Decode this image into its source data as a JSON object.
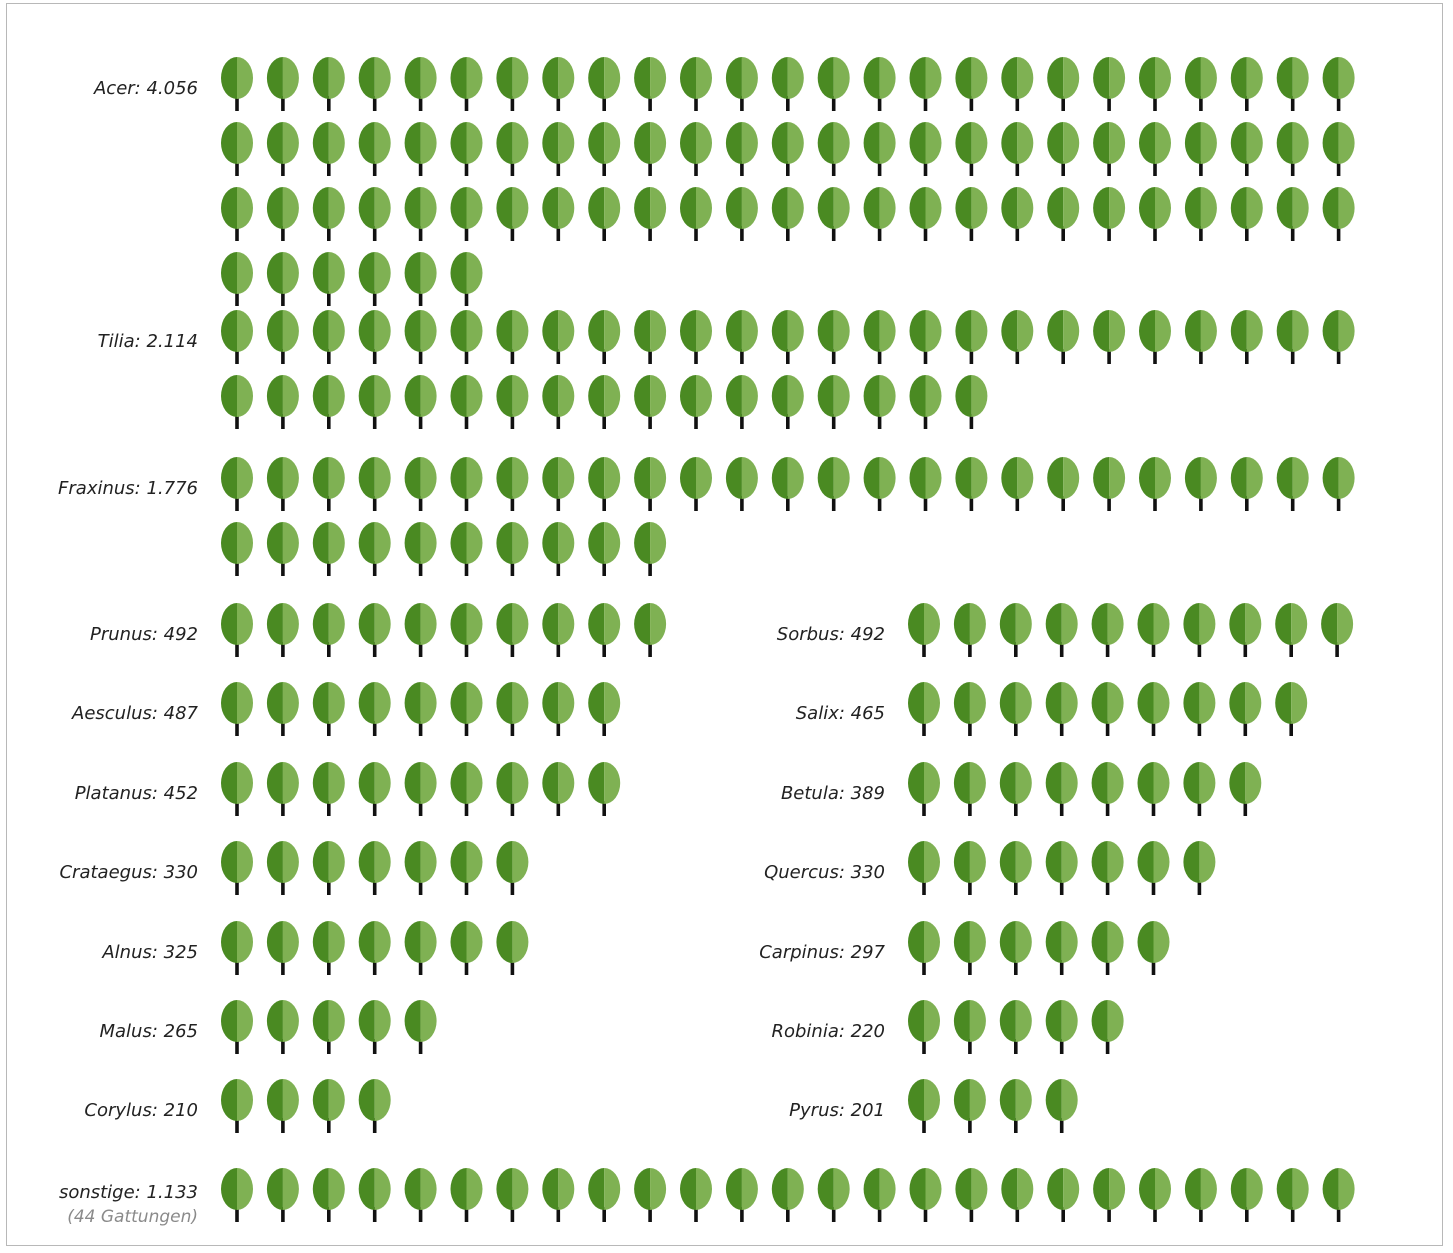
{
  "chart_data": {
    "type": "pictogram",
    "icon": "tree-icon",
    "colors": {
      "leaf_dark": "#4a8a22",
      "leaf_light": "#7fb153",
      "trunk": "#111111"
    },
    "groups": [
      {
        "label": "Acer: 4.056",
        "value": 4056,
        "icons": 81
      },
      {
        "label": "Tilia: 2.114",
        "value": 2114,
        "icons": 42
      },
      {
        "label": "Fraxinus: 1.776",
        "value": 1776,
        "icons": 35
      },
      {
        "label": "Prunus: 492",
        "value": 492,
        "icons": 10
      },
      {
        "label": "Aesculus: 487",
        "value": 487,
        "icons": 9
      },
      {
        "label": "Platanus: 452",
        "value": 452,
        "icons": 9
      },
      {
        "label": "Crataegus: 330",
        "value": 330,
        "icons": 7
      },
      {
        "label": "Alnus: 325",
        "value": 325,
        "icons": 7
      },
      {
        "label": "Malus: 265",
        "value": 265,
        "icons": 5
      },
      {
        "label": "Corylus: 210",
        "value": 210,
        "icons": 4
      },
      {
        "label": "Sorbus: 492",
        "value": 492,
        "icons": 10
      },
      {
        "label": "Salix: 465",
        "value": 465,
        "icons": 9
      },
      {
        "label": "Betula: 389",
        "value": 389,
        "icons": 8
      },
      {
        "label": "Quercus: 330",
        "value": 330,
        "icons": 7
      },
      {
        "label": "Carpinus: 297",
        "value": 297,
        "icons": 6
      },
      {
        "label": "Robinia: 220",
        "value": 220,
        "icons": 5
      },
      {
        "label": "Pyrus: 201",
        "value": 201,
        "icons": 4
      },
      {
        "label": "sonstige: 1.133",
        "note": "(44 Gattungen)",
        "value": 1133,
        "icons": 25
      }
    ]
  }
}
